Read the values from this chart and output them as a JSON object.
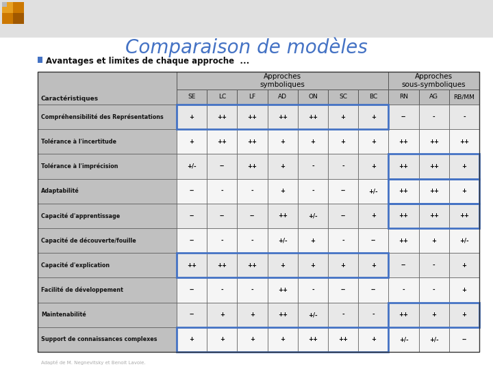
{
  "title": "Comparaison de modèles",
  "subtitle": "Avantages et limites de chaque approche  ...",
  "title_color": "#4472C4",
  "background_color": "#FFFFFF",
  "header_group1": "Approches\nsymboliques",
  "header_group2": "Approches\nsous-symboliques",
  "col_headers": [
    "SE",
    "LC",
    "LF",
    "AD",
    "ON",
    "SC",
    "BC",
    "RN",
    "AG",
    "RB/MM"
  ],
  "row_label": "Caractéristiques",
  "rows": [
    {
      "label": "Compréhensibilité des Représentations",
      "values": [
        "+",
        "++",
        "++",
        "++",
        "++",
        "+",
        "+",
        "--",
        "-",
        "-"
      ],
      "highlight_symbolic": true,
      "highlight_subsymbolic": false
    },
    {
      "label": "Tolérance à l'incertitude",
      "values": [
        "+",
        "++",
        "++",
        "+",
        "+",
        "+",
        "+",
        "++",
        "++",
        "++"
      ],
      "highlight_symbolic": false,
      "highlight_subsymbolic": false
    },
    {
      "label": "Tolérance à l'imprécision",
      "values": [
        "+/-",
        "--",
        "++",
        "+",
        "-",
        "-",
        "+",
        "++",
        "++",
        "+"
      ],
      "highlight_symbolic": false,
      "highlight_subsymbolic": true
    },
    {
      "label": "Adaptabilité",
      "values": [
        "--",
        "-",
        "-",
        "+",
        "-",
        "--",
        "+/-",
        "++",
        "++",
        "+"
      ],
      "highlight_symbolic": false,
      "highlight_subsymbolic": true
    },
    {
      "label": "Capacité d'apprentissage",
      "values": [
        "--",
        "--",
        "--",
        "++",
        "+/-",
        "--",
        "+",
        "++",
        "++",
        "++"
      ],
      "highlight_symbolic": false,
      "highlight_subsymbolic": true
    },
    {
      "label": "Capacité de découverte/fouille",
      "values": [
        "--",
        "-",
        "-",
        "+/-",
        "+",
        "-",
        "--",
        "++",
        "+",
        "+/-"
      ],
      "highlight_symbolic": false,
      "highlight_subsymbolic": false
    },
    {
      "label": "Capacité d'explication",
      "values": [
        "++",
        "++",
        "++",
        "+",
        "+",
        "+",
        "+",
        "--",
        "-",
        "+"
      ],
      "highlight_symbolic": true,
      "highlight_subsymbolic": false
    },
    {
      "label": "Facilité de développement",
      "values": [
        "--",
        "-",
        "-",
        "++",
        "-",
        "--",
        "--",
        "-",
        "-",
        "+"
      ],
      "highlight_symbolic": false,
      "highlight_subsymbolic": false
    },
    {
      "label": "Maintenabilité",
      "values": [
        "--",
        "+",
        "+",
        "++",
        "+/-",
        "-",
        "-",
        "++",
        "+",
        "+"
      ],
      "highlight_symbolic": false,
      "highlight_subsymbolic": true
    },
    {
      "label": "Support de connaissances complexes",
      "values": [
        "+",
        "+",
        "+",
        "+",
        "++",
        "++",
        "+",
        "+/-",
        "+/-",
        "--"
      ],
      "highlight_symbolic": true,
      "highlight_subsymbolic": false
    }
  ],
  "footer_text": "Adapté de M. Negnevitsky et Benoit Lavoie.",
  "highlight_color": "#4472C4",
  "border_color": "#555555",
  "header_bg": "#BEBEBE",
  "label_col_bg": "#C0C0C0",
  "row_bg_odd": "#E8E8E8",
  "row_bg_even": "#F5F5F5"
}
